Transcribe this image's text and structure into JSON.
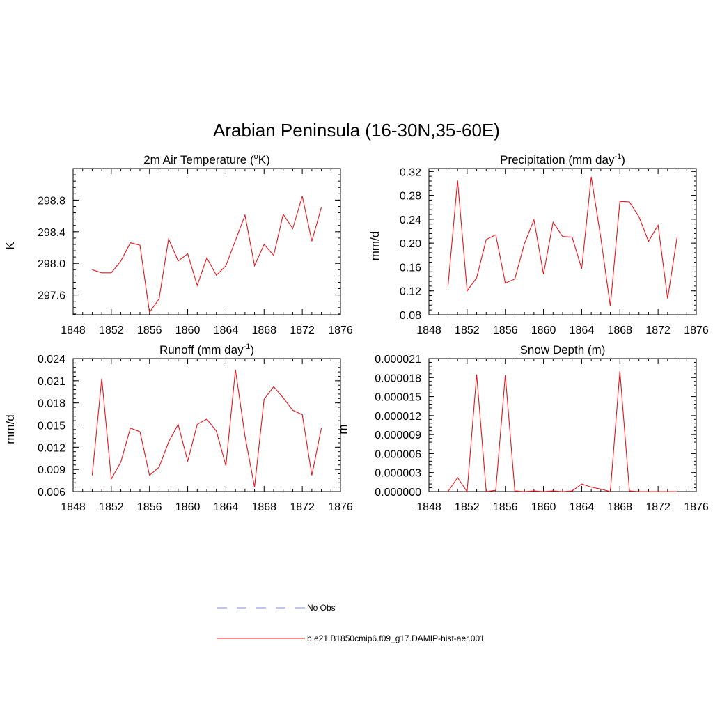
{
  "main_title": "Arabian Peninsula (16-30N,35-60E)",
  "colors": {
    "model_line": "#e8141b",
    "obs_line": "#9aa0ee",
    "axis": "#000000"
  },
  "legend": {
    "obs_label": "No Obs",
    "model_label": "b.e21.B1850cmip6.f09_g17.DAMIP-hist-aer.001"
  },
  "chart_data": [
    {
      "id": "temperature",
      "type": "line",
      "title_parts": {
        "pre": "2m Air Temperature (",
        "sup": "o",
        "post": "K)"
      },
      "xlabel": "",
      "ylabel": "K",
      "xlim": [
        1848,
        1876
      ],
      "ylim": [
        297.35,
        299.2
      ],
      "xticks": [
        1848,
        1852,
        1856,
        1860,
        1864,
        1868,
        1872,
        1876
      ],
      "yticks": [
        "297.6",
        "298.0",
        "298.4",
        "298.8"
      ],
      "x": [
        1850,
        1851,
        1852,
        1853,
        1854,
        1855,
        1856,
        1857,
        1858,
        1859,
        1860,
        1861,
        1862,
        1863,
        1864,
        1865,
        1866,
        1867,
        1868,
        1869,
        1870,
        1871,
        1872,
        1873,
        1874
      ],
      "series": [
        {
          "name": "b.e21.B1850cmip6.f09_g17.DAMIP-hist-aer.001",
          "values": [
            297.92,
            297.88,
            297.88,
            298.03,
            298.26,
            298.23,
            297.38,
            297.55,
            298.31,
            298.03,
            298.12,
            297.72,
            298.07,
            297.85,
            297.97,
            298.29,
            298.61,
            297.97,
            298.24,
            298.1,
            298.62,
            298.44,
            298.85,
            298.28,
            298.71
          ]
        }
      ]
    },
    {
      "id": "precipitation",
      "type": "line",
      "title_parts": {
        "pre": "Precipitation (mm day",
        "sup": "-1",
        "post": ")"
      },
      "xlabel": "",
      "ylabel": "mm/d",
      "xlim": [
        1848,
        1876
      ],
      "ylim": [
        0.08,
        0.325
      ],
      "xticks": [
        1848,
        1852,
        1856,
        1860,
        1864,
        1868,
        1872,
        1876
      ],
      "yticks": [
        "0.08",
        "0.12",
        "0.16",
        "0.20",
        "0.24",
        "0.28",
        "0.32"
      ],
      "x": [
        1850,
        1851,
        1852,
        1853,
        1854,
        1855,
        1856,
        1857,
        1858,
        1859,
        1860,
        1861,
        1862,
        1863,
        1864,
        1865,
        1866,
        1867,
        1868,
        1869,
        1870,
        1871,
        1872,
        1873,
        1874
      ],
      "series": [
        {
          "name": "b.e21.B1850cmip6.f09_g17.DAMIP-hist-aer.001",
          "values": [
            0.128,
            0.305,
            0.12,
            0.142,
            0.206,
            0.214,
            0.133,
            0.14,
            0.199,
            0.239,
            0.148,
            0.235,
            0.211,
            0.21,
            0.157,
            0.311,
            0.209,
            0.094,
            0.27,
            0.269,
            0.244,
            0.203,
            0.23,
            0.107,
            0.211
          ]
        }
      ]
    },
    {
      "id": "runoff",
      "type": "line",
      "title_parts": {
        "pre": "Runoff (mm day",
        "sup": "-1",
        "post": ")"
      },
      "xlabel": "",
      "ylabel": "mm/d",
      "xlim": [
        1848,
        1876
      ],
      "ylim": [
        0.006,
        0.024
      ],
      "xticks": [
        1848,
        1852,
        1856,
        1860,
        1864,
        1868,
        1872,
        1876
      ],
      "yticks": [
        "0.006",
        "0.009",
        "0.012",
        "0.015",
        "0.018",
        "0.021",
        "0.024"
      ],
      "x": [
        1850,
        1851,
        1852,
        1853,
        1854,
        1855,
        1856,
        1857,
        1858,
        1859,
        1860,
        1861,
        1862,
        1863,
        1864,
        1865,
        1866,
        1867,
        1868,
        1869,
        1870,
        1871,
        1872,
        1873,
        1874
      ],
      "series": [
        {
          "name": "b.e21.B1850cmip6.f09_g17.DAMIP-hist-aer.001",
          "values": [
            0.0082,
            0.0213,
            0.0077,
            0.01,
            0.0146,
            0.0141,
            0.0082,
            0.0093,
            0.0127,
            0.0151,
            0.0101,
            0.0151,
            0.0158,
            0.0142,
            0.0095,
            0.0225,
            0.0135,
            0.0066,
            0.0185,
            0.0202,
            0.0187,
            0.017,
            0.0164,
            0.0082,
            0.0146
          ]
        }
      ]
    },
    {
      "id": "snow_depth",
      "type": "line",
      "title_parts": {
        "pre": "Snow Depth (m)",
        "sup": "",
        "post": ""
      },
      "xlabel": "",
      "ylabel": "m",
      "xlim": [
        1848,
        1876
      ],
      "ylim": [
        0,
        2.1e-05
      ],
      "xticks": [
        1848,
        1852,
        1856,
        1860,
        1864,
        1868,
        1872,
        1876
      ],
      "yticks": [
        "0.000000",
        "0.000003",
        "0.000006",
        "0.000009",
        "0.000012",
        "0.000015",
        "0.000018",
        "0.000021"
      ],
      "x": [
        1850,
        1851,
        1852,
        1853,
        1854,
        1855,
        1856,
        1857,
        1858,
        1859,
        1860,
        1861,
        1862,
        1863,
        1864,
        1865,
        1866,
        1867,
        1868,
        1869,
        1870,
        1871,
        1872,
        1873,
        1874
      ],
      "series": [
        {
          "name": "b.e21.B1850cmip6.f09_g17.DAMIP-hist-aer.001",
          "values": [
            0.0,
            2.2e-06,
            0.0,
            1.85e-05,
            0.0,
            2e-07,
            1.84e-05,
            1e-07,
            0.0,
            1e-07,
            0.0,
            1e-07,
            0.0,
            1e-07,
            1.2e-06,
            7e-07,
            4e-07,
            0.0,
            1.9e-05,
            1e-07,
            0.0,
            0.0,
            0.0,
            0.0,
            0.0
          ]
        }
      ]
    }
  ]
}
